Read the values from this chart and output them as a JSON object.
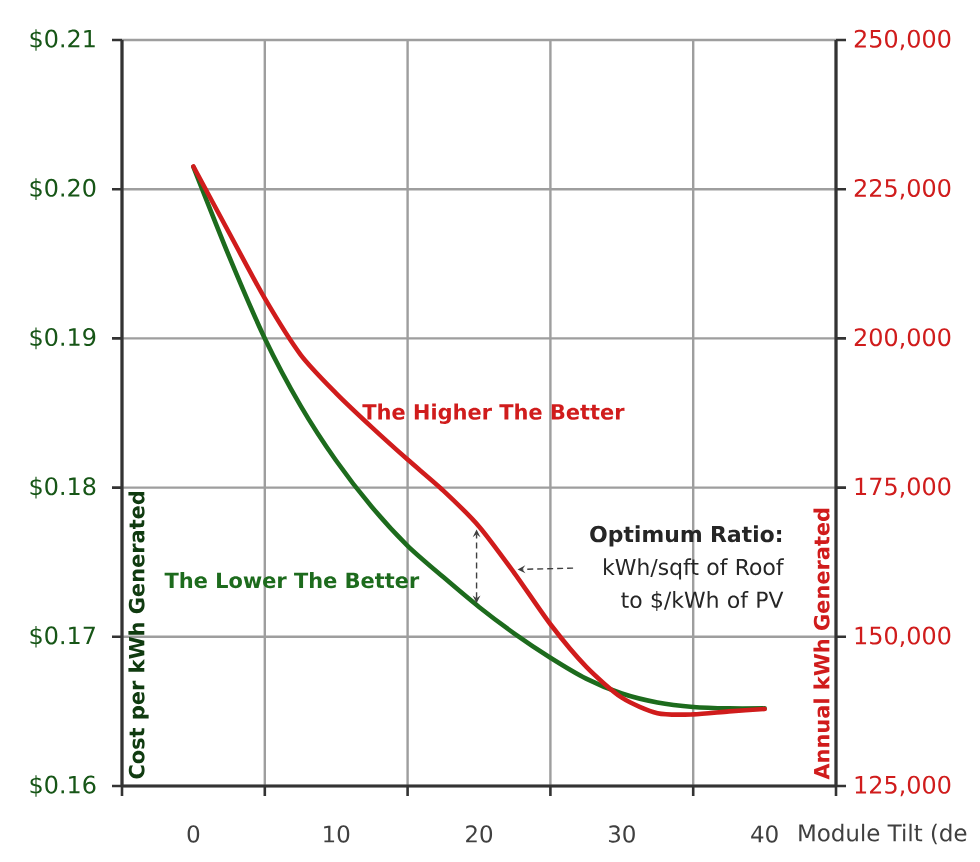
{
  "chart_data": {
    "type": "line",
    "x": [
      0,
      2.5,
      5,
      7.5,
      10,
      12.5,
      15,
      17.5,
      20,
      22.5,
      25,
      27.5,
      30,
      32.5,
      35,
      37.5,
      40
    ],
    "xlabel": "Module Tilt (de",
    "ylabel": "Cost per kWh Generated",
    "y2label": "Annual kWh Generated",
    "xlim": [
      -5,
      45
    ],
    "xticks": [
      {
        "value": -5,
        "label": null
      },
      0,
      {
        "value": 5,
        "label": null
      },
      10,
      {
        "value": 15,
        "label": null
      },
      20,
      {
        "value": 25,
        "label": null
      },
      30,
      {
        "value": 35,
        "label": null
      },
      40,
      {
        "value": 45,
        "label": null
      }
    ],
    "ylim": [
      0.16,
      0.21
    ],
    "yticks": [
      {
        "value": 0.16,
        "label": "$0.16"
      },
      {
        "value": 0.17,
        "label": "$0.17"
      },
      {
        "value": 0.18,
        "label": "$0.18"
      },
      {
        "value": 0.19,
        "label": "$0.19"
      },
      {
        "value": 0.2,
        "label": "$0.20"
      },
      {
        "value": 0.21,
        "label": "$0.21"
      }
    ],
    "y2lim": [
      125000,
      250000
    ],
    "y2ticks": [
      {
        "value": 125000,
        "label": "125,000"
      },
      {
        "value": 150000,
        "label": "150,000"
      },
      {
        "value": 175000,
        "label": "175,000"
      },
      {
        "value": 200000,
        "label": "200,000"
      },
      {
        "value": 225000,
        "label": "225,000"
      },
      {
        "value": 250000,
        "label": "250,000"
      }
    ],
    "grid": true,
    "marker": "none",
    "line_style": "solid",
    "series": [
      {
        "name": "The Lower The Better",
        "color": "#1d6b1d",
        "values": [
          0.2015,
          0.1955,
          0.19,
          0.1855,
          0.1818,
          0.1787,
          0.1761,
          0.174,
          0.172,
          0.1702,
          0.1686,
          0.1672,
          0.1662,
          0.1656,
          0.1653,
          0.1652,
          0.1652
        ]
      },
      {
        "name": "The Higher The Better",
        "color": "#d01c1c",
        "axis": "y2",
        "values": [
          228800,
          217700,
          206700,
          197300,
          190800,
          185100,
          179700,
          174500,
          168500,
          160600,
          152100,
          145000,
          139800,
          137200,
          137000,
          137500,
          137900
        ]
      }
    ],
    "annotations": [
      {
        "text": "**Optimum Ratio:** kWh/sqft of Roof to $/kWh of PV",
        "x": 22,
        "y": 0.1745
      }
    ]
  }
}
